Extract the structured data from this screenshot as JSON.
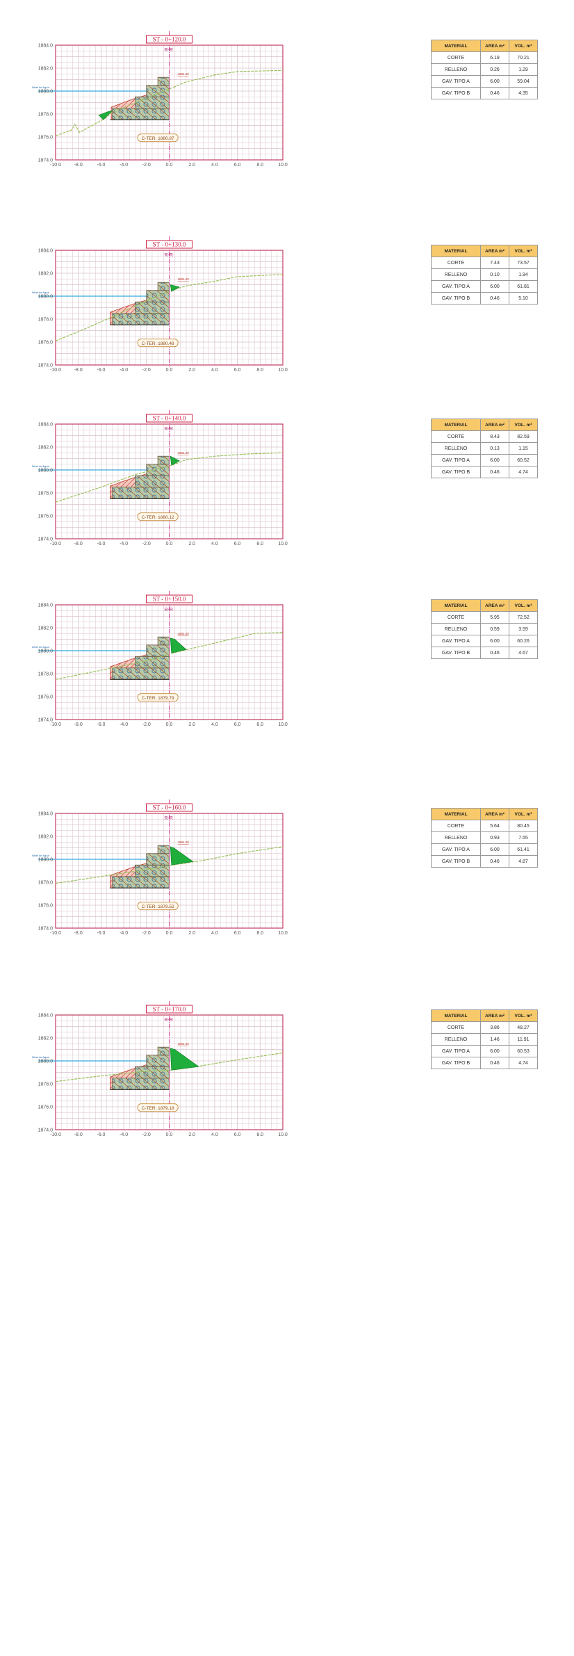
{
  "colors": {
    "grid": "#d9c2cc",
    "frame": "#c23b5f",
    "water": "#33aadd",
    "terrain": "#9ac15a",
    "cut": "#1fae3b",
    "fill_hatch": "#c0392b",
    "gabion": "#7fb3c8",
    "axis": "#d33aa0"
  },
  "table_headers": {
    "material": "MATERIAL",
    "area": "AREA m²",
    "vol": "VOL. m³"
  },
  "water_label": "Nivel de Agua",
  "y_ticks": [
    "1884.0",
    "1882.0",
    "1880.0",
    "1878.0",
    "1876.0",
    "1874.0"
  ],
  "x_ticks": [
    "-10.0",
    "-8.0",
    "-6.0",
    "-4.0",
    "-2.0",
    "0.0",
    "2.0",
    "4.0",
    "6.0",
    "8.0",
    "10.0"
  ],
  "sections": [
    {
      "title": "ST - 0+120.0",
      "axis_label": "R-R",
      "elev_tag": "1881.20",
      "c_ter": "C-TER: 1880.87",
      "rows": [
        {
          "m": "CORTE",
          "a": "6.19",
          "v": "70.21"
        },
        {
          "m": "RELLENO",
          "a": "0.26",
          "v": "1.29"
        },
        {
          "m": "GAV. TIPO A",
          "a": "6.00",
          "v": "59.04"
        },
        {
          "m": "GAV. TIPO B",
          "a": "0.46",
          "v": "4.35"
        }
      ]
    },
    {
      "title": "ST - 0+130.0",
      "axis_label": "R-R",
      "elev_tag": "1881.20",
      "c_ter": "C-TER: 1880.48",
      "rows": [
        {
          "m": "CORTE",
          "a": "7.43",
          "v": "73.57"
        },
        {
          "m": "RELLENO",
          "a": "0.10",
          "v": "1.94"
        },
        {
          "m": "GAV. TIPO A",
          "a": "6.00",
          "v": "61.81"
        },
        {
          "m": "GAV. TIPO B",
          "a": "0.46",
          "v": "5.10"
        }
      ]
    },
    {
      "title": "ST - 0+140.0",
      "axis_label": "R-R",
      "elev_tag": "1881.20",
      "c_ter": "C-TER: 1880.12",
      "rows": [
        {
          "m": "CORTE",
          "a": "8.43",
          "v": "82.59"
        },
        {
          "m": "RELLENO",
          "a": "0.13",
          "v": "1.15"
        },
        {
          "m": "GAV. TIPO A",
          "a": "6.00",
          "v": "60.52"
        },
        {
          "m": "GAV. TIPO B",
          "a": "0.46",
          "v": "4.74"
        }
      ]
    },
    {
      "title": "ST - 0+150.0",
      "axis_label": "R-R",
      "elev_tag": "1881.20",
      "c_ter": "C-TER: 1879.79",
      "rows": [
        {
          "m": "CORTE",
          "a": "5.95",
          "v": "72.52"
        },
        {
          "m": "RELLENO",
          "a": "0.59",
          "v": "3.59"
        },
        {
          "m": "GAV. TIPO A",
          "a": "6.00",
          "v": "60.26"
        },
        {
          "m": "GAV. TIPO B",
          "a": "0.46",
          "v": "4.67"
        }
      ]
    },
    {
      "title": "ST - 0+160.0",
      "axis_label": "R-R",
      "elev_tag": "1881.20",
      "c_ter": "C-TER: 1879.52",
      "rows": [
        {
          "m": "CORTE",
          "a": "5.64",
          "v": "80.45"
        },
        {
          "m": "RELLENO",
          "a": "0.93",
          "v": "7.55"
        },
        {
          "m": "GAV. TIPO A",
          "a": "6.00",
          "v": "61.41"
        },
        {
          "m": "GAV. TIPO B",
          "a": "0.46",
          "v": "4.87"
        }
      ]
    },
    {
      "title": "ST - 0+170.0",
      "axis_label": "R-R",
      "elev_tag": "1881.20",
      "c_ter": "C-TER: 1879.18",
      "rows": [
        {
          "m": "CORTE",
          "a": "3.86",
          "v": "48.27"
        },
        {
          "m": "RELLENO",
          "a": "1.46",
          "v": "11.91"
        },
        {
          "m": "GAV. TIPO A",
          "a": "6.00",
          "v": "60.53"
        },
        {
          "m": "GAV. TIPO B",
          "a": "0.46",
          "v": "4.74"
        }
      ]
    }
  ]
}
